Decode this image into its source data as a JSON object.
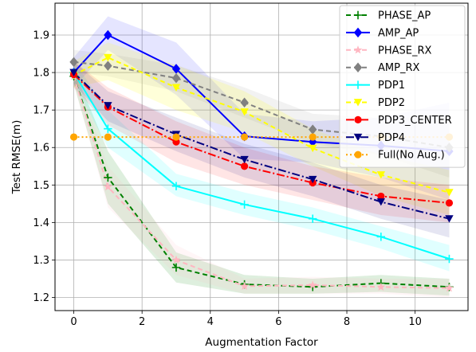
{
  "chart_data": {
    "type": "line",
    "title": "",
    "xlabel": "Augmentation Factor",
    "ylabel": "Test RMSE(m)",
    "xlim": [
      -0.55,
      11.55
    ],
    "ylim": [
      1.165,
      1.985
    ],
    "xticks": [
      0,
      2,
      4,
      6,
      8,
      10
    ],
    "yticks": [
      1.2,
      1.3,
      1.4,
      1.5,
      1.6,
      1.7,
      1.8,
      1.9
    ],
    "x": [
      0,
      1,
      3,
      5,
      7,
      9,
      11
    ],
    "grid": true,
    "legend_position": "upper-right",
    "series": [
      {
        "name": "PHASE_AP",
        "color": "#008000",
        "dash": "6,4",
        "marker": "plus",
        "band_opacity": 0.13,
        "values": [
          1.79,
          1.52,
          1.28,
          1.235,
          1.228,
          1.238,
          1.228
        ],
        "band": [
          [
            1.77,
            1.81
          ],
          [
            1.45,
            1.59
          ],
          [
            1.24,
            1.32
          ],
          [
            1.21,
            1.26
          ],
          [
            1.21,
            1.25
          ],
          [
            1.215,
            1.26
          ],
          [
            1.205,
            1.25
          ]
        ]
      },
      {
        "name": "AMP_AP",
        "color": "#0000ff",
        "dash": "",
        "marker": "diamond",
        "band_opacity": 0.1,
        "values": [
          1.8,
          1.9,
          1.81,
          1.63,
          1.615,
          1.605,
          1.59
        ],
        "band": [
          [
            1.76,
            1.84
          ],
          [
            1.86,
            1.95
          ],
          [
            1.74,
            1.88
          ],
          [
            1.57,
            1.69
          ],
          [
            1.56,
            1.67
          ],
          [
            1.52,
            1.68
          ],
          [
            1.46,
            1.72
          ]
        ]
      },
      {
        "name": "PHASE_RX",
        "color": "#ffb6c1",
        "dash": "6,4",
        "marker": "star",
        "band_opacity": 0.12,
        "values": [
          1.79,
          1.495,
          1.3,
          1.23,
          1.233,
          1.228,
          1.225
        ],
        "band": [
          [
            1.77,
            1.81
          ],
          [
            1.44,
            1.55
          ],
          [
            1.26,
            1.34
          ],
          [
            1.21,
            1.25
          ],
          [
            1.21,
            1.255
          ],
          [
            1.21,
            1.25
          ],
          [
            1.2,
            1.25
          ]
        ]
      },
      {
        "name": "AMP_RX",
        "color": "#808080",
        "dash": "6,4",
        "marker": "diamond",
        "band_opacity": 0.1,
        "values": [
          1.828,
          1.818,
          1.785,
          1.72,
          1.648,
          1.63,
          1.6
        ],
        "band": [
          [
            1.8,
            1.86
          ],
          [
            1.79,
            1.85
          ],
          [
            1.75,
            1.82
          ],
          [
            1.68,
            1.76
          ],
          [
            1.61,
            1.69
          ],
          [
            1.58,
            1.68
          ],
          [
            1.52,
            1.68
          ]
        ]
      },
      {
        "name": "PDP1",
        "color": "#00ffff",
        "dash": "",
        "marker": "plus",
        "band_opacity": 0.12,
        "values": [
          1.8,
          1.65,
          1.497,
          1.448,
          1.41,
          1.362,
          1.303
        ],
        "band": [
          [
            1.77,
            1.83
          ],
          [
            1.6,
            1.7
          ],
          [
            1.47,
            1.53
          ],
          [
            1.42,
            1.48
          ],
          [
            1.38,
            1.44
          ],
          [
            1.33,
            1.39
          ],
          [
            1.27,
            1.34
          ]
        ]
      },
      {
        "name": "PDP2",
        "color": "#ffff00",
        "dash": "6,4",
        "marker": "triangle-down",
        "band_opacity": 0.15,
        "values": [
          1.793,
          1.84,
          1.76,
          1.695,
          1.598,
          1.527,
          1.48
        ],
        "band": [
          [
            1.76,
            1.83
          ],
          [
            1.78,
            1.88
          ],
          [
            1.7,
            1.82
          ],
          [
            1.64,
            1.75
          ],
          [
            1.55,
            1.65
          ],
          [
            1.47,
            1.58
          ],
          [
            1.42,
            1.54
          ]
        ]
      },
      {
        "name": "PDP3_CENTER",
        "color": "#ff0000",
        "dash": "10,3,2,3",
        "marker": "circle",
        "band_opacity": 0.1,
        "values": [
          1.795,
          1.708,
          1.615,
          1.55,
          1.506,
          1.47,
          1.452
        ],
        "band": [
          [
            1.76,
            1.83
          ],
          [
            1.66,
            1.76
          ],
          [
            1.56,
            1.67
          ],
          [
            1.5,
            1.6
          ],
          [
            1.46,
            1.55
          ],
          [
            1.42,
            1.52
          ],
          [
            1.4,
            1.5
          ]
        ]
      },
      {
        "name": "PDP4",
        "color": "#000080",
        "dash": "10,3,2,3",
        "marker": "triangle-down",
        "band_opacity": 0.1,
        "values": [
          1.8,
          1.712,
          1.635,
          1.568,
          1.515,
          1.455,
          1.41
        ],
        "band": [
          [
            1.77,
            1.83
          ],
          [
            1.67,
            1.75
          ],
          [
            1.59,
            1.68
          ],
          [
            1.52,
            1.61
          ],
          [
            1.47,
            1.56
          ],
          [
            1.41,
            1.5
          ],
          [
            1.36,
            1.46
          ]
        ]
      },
      {
        "name": "Full(No Aug.)",
        "color": "#ffa500",
        "dash": "2,3",
        "marker": "circle",
        "band_opacity": 0,
        "values": [
          1.628,
          1.628,
          1.628,
          1.628,
          1.628,
          1.628,
          1.628
        ],
        "band": []
      }
    ]
  }
}
